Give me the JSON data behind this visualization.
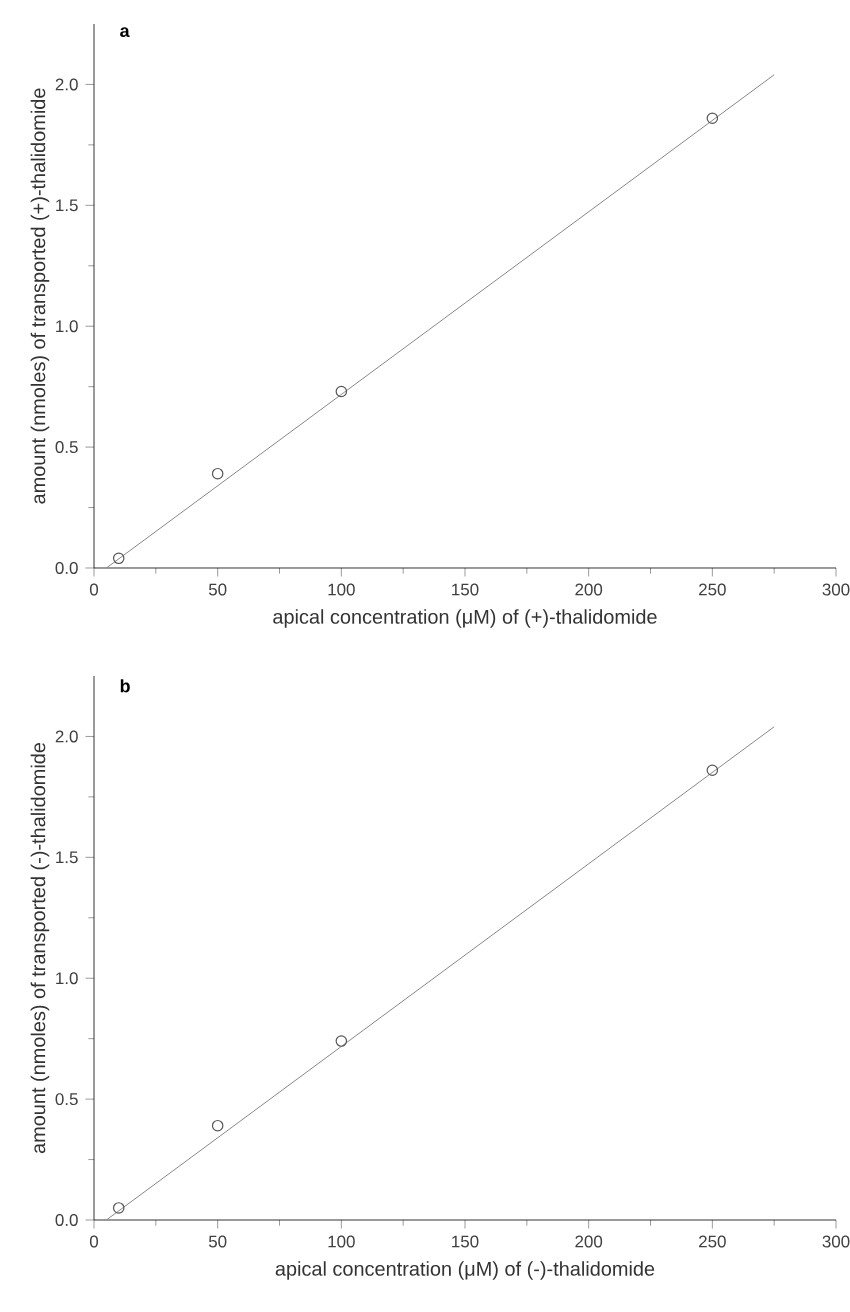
{
  "chart_data": [
    {
      "type": "scatter",
      "title": "a",
      "xlabel": "apical concentration (μM) of (+)-thalidomide",
      "ylabel": "amount (nmoles) of transported (+)-thalidomide",
      "xlim": [
        0,
        300
      ],
      "ylim": [
        0,
        2.25
      ],
      "xticks": [
        0,
        50,
        100,
        150,
        200,
        250,
        300
      ],
      "yticks": [
        {
          "value": 0,
          "label": "0.0"
        },
        {
          "value": 0.5,
          "label": "0.5"
        },
        {
          "value": 1,
          "label": "1.0"
        },
        {
          "value": 1.5,
          "label": "1.5"
        },
        {
          "value": 2,
          "label": "2.0"
        }
      ],
      "grid": false,
      "series": [
        {
          "type": "scatter",
          "marker": "circle",
          "color": "#555555",
          "x": [
            10,
            50,
            100,
            250
          ],
          "values": [
            0.04,
            0.39,
            0.73,
            1.86
          ]
        },
        {
          "type": "line",
          "marker": "none",
          "color": "#888888",
          "x": [
            5,
            275
          ],
          "values": [
            0,
            2.04
          ]
        }
      ]
    },
    {
      "type": "scatter",
      "title": "b",
      "xlabel": "apical concentration (μM) of (-)-thalidomide",
      "ylabel": "amount (nmoles) of transported (-)-thalidomide",
      "xlim": [
        0,
        300
      ],
      "ylim": [
        0,
        2.25
      ],
      "xticks": [
        0,
        50,
        100,
        150,
        200,
        250,
        300
      ],
      "yticks": [
        {
          "value": 0,
          "label": "0.0"
        },
        {
          "value": 0.5,
          "label": "0.5"
        },
        {
          "value": 1,
          "label": "1.0"
        },
        {
          "value": 1.5,
          "label": "1.5"
        },
        {
          "value": 2,
          "label": "2.0"
        }
      ],
      "grid": false,
      "series": [
        {
          "type": "scatter",
          "marker": "circle",
          "color": "#555555",
          "x": [
            10,
            50,
            100,
            250
          ],
          "values": [
            0.05,
            0.39,
            0.74,
            1.86
          ]
        },
        {
          "type": "line",
          "marker": "none",
          "color": "#888888",
          "x": [
            5,
            275
          ],
          "values": [
            0,
            2.04
          ]
        }
      ]
    }
  ]
}
